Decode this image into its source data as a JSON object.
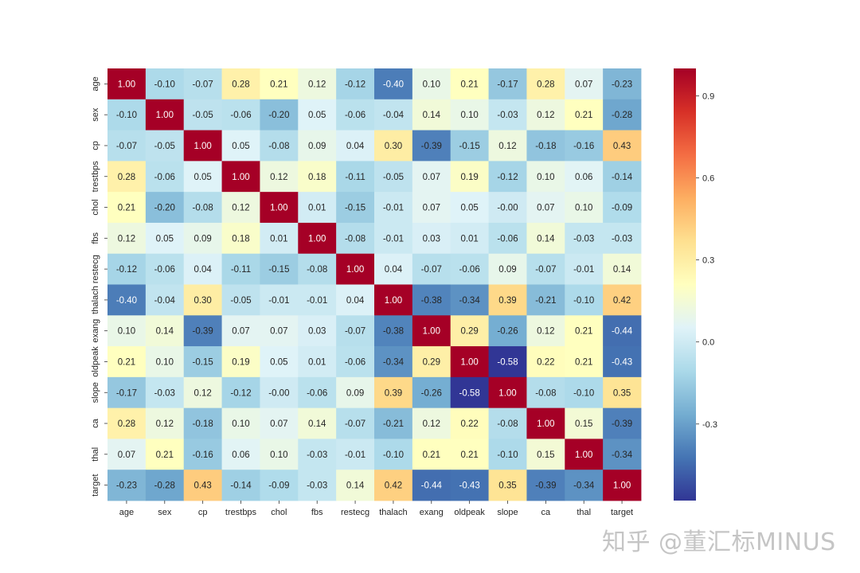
{
  "chart_data": {
    "type": "heatmap",
    "title": "",
    "labels": [
      "age",
      "sex",
      "cp",
      "trestbps",
      "chol",
      "fbs",
      "restecg",
      "thalach",
      "exang",
      "oldpeak",
      "slope",
      "ca",
      "thal",
      "target"
    ],
    "values": [
      [
        "1.00",
        "-0.10",
        "-0.07",
        "0.28",
        "0.21",
        "0.12",
        "-0.12",
        "-0.40",
        "0.10",
        "0.21",
        "-0.17",
        "0.28",
        "0.07",
        "-0.23"
      ],
      [
        "-0.10",
        "1.00",
        "-0.05",
        "-0.06",
        "-0.20",
        "0.05",
        "-0.06",
        "-0.04",
        "0.14",
        "0.10",
        "-0.03",
        "0.12",
        "0.21",
        "-0.28"
      ],
      [
        "-0.07",
        "-0.05",
        "1.00",
        "0.05",
        "-0.08",
        "0.09",
        "0.04",
        "0.30",
        "-0.39",
        "-0.15",
        "0.12",
        "-0.18",
        "-0.16",
        "0.43"
      ],
      [
        "0.28",
        "-0.06",
        "0.05",
        "1.00",
        "0.12",
        "0.18",
        "-0.11",
        "-0.05",
        "0.07",
        "0.19",
        "-0.12",
        "0.10",
        "0.06",
        "-0.14"
      ],
      [
        "0.21",
        "-0.20",
        "-0.08",
        "0.12",
        "1.00",
        "0.01",
        "-0.15",
        "-0.01",
        "0.07",
        "0.05",
        "-0.00",
        "0.07",
        "0.10",
        "-0.09"
      ],
      [
        "0.12",
        "0.05",
        "0.09",
        "0.18",
        "0.01",
        "1.00",
        "-0.08",
        "-0.01",
        "0.03",
        "0.01",
        "-0.06",
        "0.14",
        "-0.03",
        "-0.03"
      ],
      [
        "-0.12",
        "-0.06",
        "0.04",
        "-0.11",
        "-0.15",
        "-0.08",
        "1.00",
        "0.04",
        "-0.07",
        "-0.06",
        "0.09",
        "-0.07",
        "-0.01",
        "0.14"
      ],
      [
        "-0.40",
        "-0.04",
        "0.30",
        "-0.05",
        "-0.01",
        "-0.01",
        "0.04",
        "1.00",
        "-0.38",
        "-0.34",
        "0.39",
        "-0.21",
        "-0.10",
        "0.42"
      ],
      [
        "0.10",
        "0.14",
        "-0.39",
        "0.07",
        "0.07",
        "0.03",
        "-0.07",
        "-0.38",
        "1.00",
        "0.29",
        "-0.26",
        "0.12",
        "0.21",
        "-0.44"
      ],
      [
        "0.21",
        "0.10",
        "-0.15",
        "0.19",
        "0.05",
        "0.01",
        "-0.06",
        "-0.34",
        "0.29",
        "1.00",
        "-0.58",
        "0.22",
        "0.21",
        "-0.43"
      ],
      [
        "-0.17",
        "-0.03",
        "0.12",
        "-0.12",
        "-0.00",
        "-0.06",
        "0.09",
        "0.39",
        "-0.26",
        "-0.58",
        "1.00",
        "-0.08",
        "-0.10",
        "0.35"
      ],
      [
        "0.28",
        "0.12",
        "-0.18",
        "0.10",
        "0.07",
        "0.14",
        "-0.07",
        "-0.21",
        "0.12",
        "0.22",
        "-0.08",
        "1.00",
        "0.15",
        "-0.39"
      ],
      [
        "0.07",
        "0.21",
        "-0.16",
        "0.06",
        "0.10",
        "-0.03",
        "-0.01",
        "-0.10",
        "0.21",
        "0.21",
        "-0.10",
        "0.15",
        "1.00",
        "-0.34"
      ],
      [
        "-0.23",
        "-0.28",
        "0.43",
        "-0.14",
        "-0.09",
        "-0.03",
        "0.14",
        "0.42",
        "-0.44",
        "-0.43",
        "0.35",
        "-0.39",
        "-0.34",
        "1.00"
      ]
    ],
    "colorscale": "RdYlBu_r",
    "color_range": [
      -0.58,
      1.0
    ],
    "colorbar_ticks": [
      "0.9",
      "0.6",
      "0.3",
      "0.0",
      "-0.3"
    ]
  },
  "watermark": "知乎 @董汇标MINUS"
}
